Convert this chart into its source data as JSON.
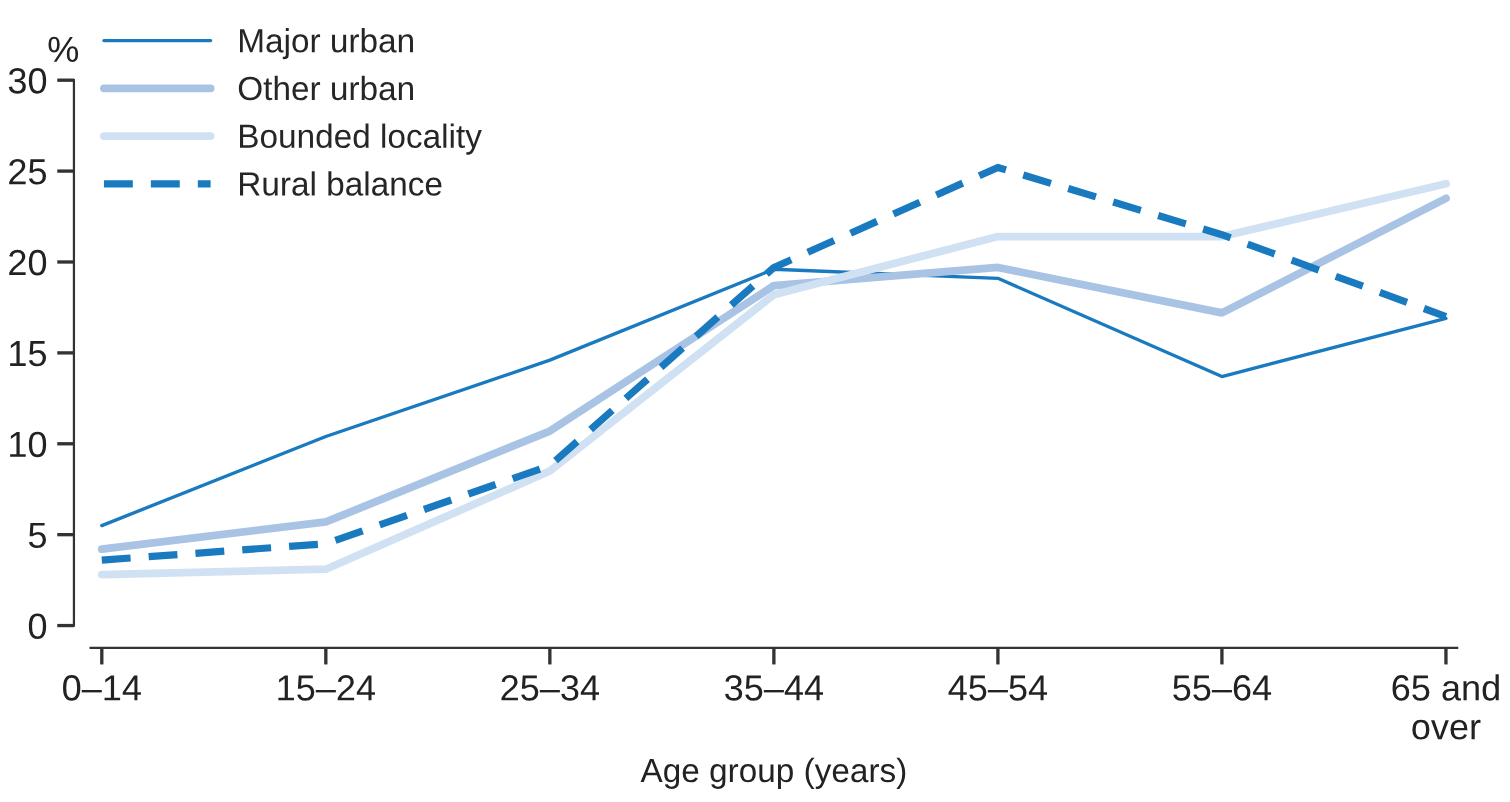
{
  "chart_data": {
    "type": "line",
    "categories": [
      "0–14",
      "15–24",
      "25–34",
      "35–44",
      "45–54",
      "55–64",
      "65 and\nover"
    ],
    "series": [
      {
        "name": "Major urban",
        "color": "#1a7abf",
        "line_style": "solid",
        "values": [
          5.5,
          10.4,
          14.6,
          19.6,
          19.1,
          13.7,
          16.9
        ]
      },
      {
        "name": "Other urban",
        "color": "#a9c3e5",
        "line_style": "solid",
        "values": [
          4.2,
          5.7,
          10.7,
          18.7,
          19.7,
          17.2,
          23.5
        ]
      },
      {
        "name": "Bounded locality",
        "color": "#d0e1f4",
        "line_style": "solid",
        "values": [
          2.8,
          3.1,
          8.5,
          18.2,
          21.4,
          21.4,
          24.3
        ]
      },
      {
        "name": "Rural balance",
        "color": "#1a7abf",
        "line_style": "dashed",
        "values": [
          3.6,
          4.5,
          8.8,
          19.7,
          25.2,
          21.5,
          17.0
        ]
      }
    ],
    "ylabel": "%",
    "xlabel": "Age group (years)",
    "ylim": [
      0,
      30
    ],
    "yticks": [
      0,
      5,
      10,
      15,
      20,
      25,
      30
    ],
    "legend": "top left",
    "grid": false,
    "marker": "none"
  }
}
